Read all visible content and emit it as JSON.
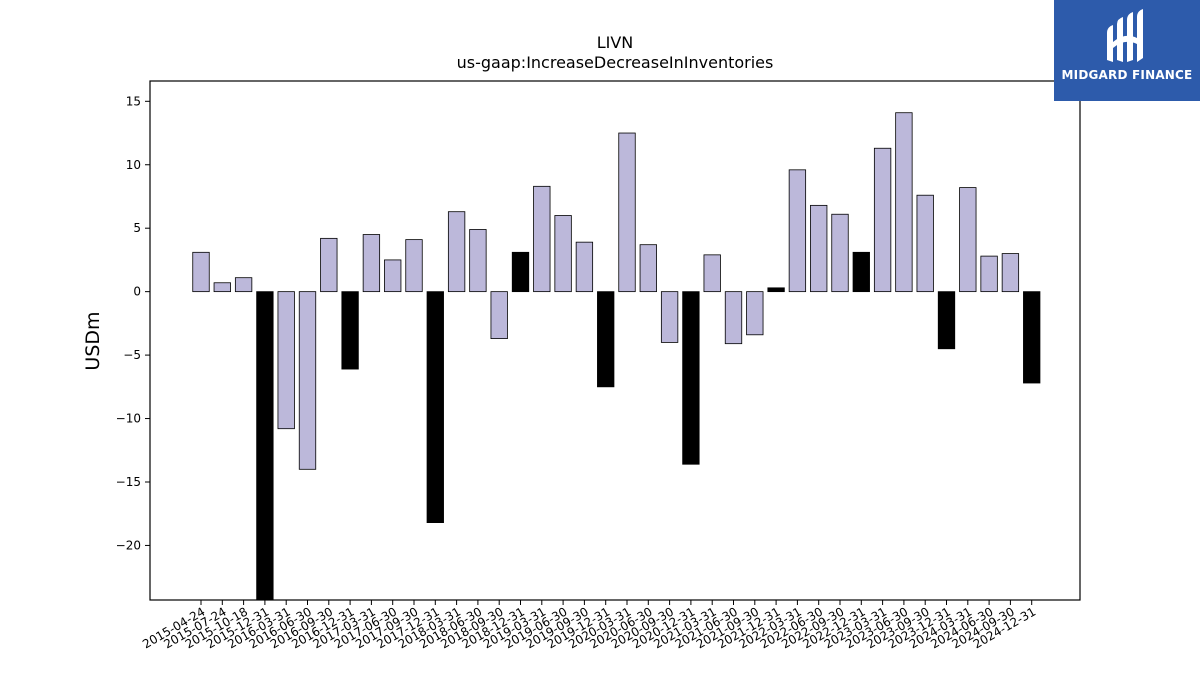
{
  "chart_data": {
    "type": "bar",
    "title": "LIVN",
    "subtitle": "us-gaap:IncreaseDecreaseInInventories",
    "ylabel": "USDm",
    "xlabel": "",
    "ylim": [
      -24.3,
      16.6
    ],
    "yticks": [
      -20,
      -15,
      -10,
      -5,
      0,
      5,
      10,
      15
    ],
    "grid": false,
    "categories": [
      "2015-04-24",
      "2015-07-24",
      "2015-10-18",
      "2015-12-31",
      "2016-03-31",
      "2016-06-30",
      "2016-09-30",
      "2016-12-31",
      "2017-03-31",
      "2017-06-30",
      "2017-09-30",
      "2017-12-31",
      "2018-03-31",
      "2018-06-30",
      "2018-09-30",
      "2018-12-31",
      "2019-03-31",
      "2019-06-30",
      "2019-09-30",
      "2019-12-31",
      "2020-03-31",
      "2020-06-30",
      "2020-09-30",
      "2020-12-31",
      "2021-03-31",
      "2021-06-30",
      "2021-09-30",
      "2021-12-31",
      "2022-03-31",
      "2022-06-30",
      "2022-09-30",
      "2022-12-31",
      "2023-03-31",
      "2023-06-30",
      "2023-09-30",
      "2023-12-31",
      "2024-03-31",
      "2024-06-30",
      "2024-09-30",
      "2024-12-31"
    ],
    "values": [
      3.1,
      0.7,
      1.1,
      -25.0,
      -10.8,
      -14.0,
      4.2,
      -6.1,
      4.5,
      2.5,
      4.1,
      -18.2,
      6.3,
      4.9,
      -3.7,
      3.1,
      8.3,
      6.0,
      3.9,
      -7.5,
      12.5,
      3.7,
      -4.0,
      -13.6,
      2.9,
      -4.1,
      -3.4,
      0.3,
      9.6,
      6.8,
      6.1,
      3.1,
      11.3,
      14.1,
      7.6,
      -4.5,
      8.2,
      2.8,
      3.0,
      -7.2
    ],
    "highlight": [
      false,
      false,
      false,
      true,
      false,
      false,
      false,
      true,
      false,
      false,
      false,
      true,
      false,
      false,
      false,
      true,
      false,
      false,
      false,
      true,
      false,
      false,
      false,
      true,
      false,
      false,
      false,
      true,
      false,
      false,
      false,
      true,
      false,
      false,
      false,
      true,
      false,
      false,
      false,
      true
    ],
    "colors": {
      "normal": "#bcb8da",
      "highlight": "#000000",
      "edge": "#000000"
    }
  },
  "logo": {
    "text": "MIDGARD FINANCE",
    "color": "#2d5bab"
  }
}
